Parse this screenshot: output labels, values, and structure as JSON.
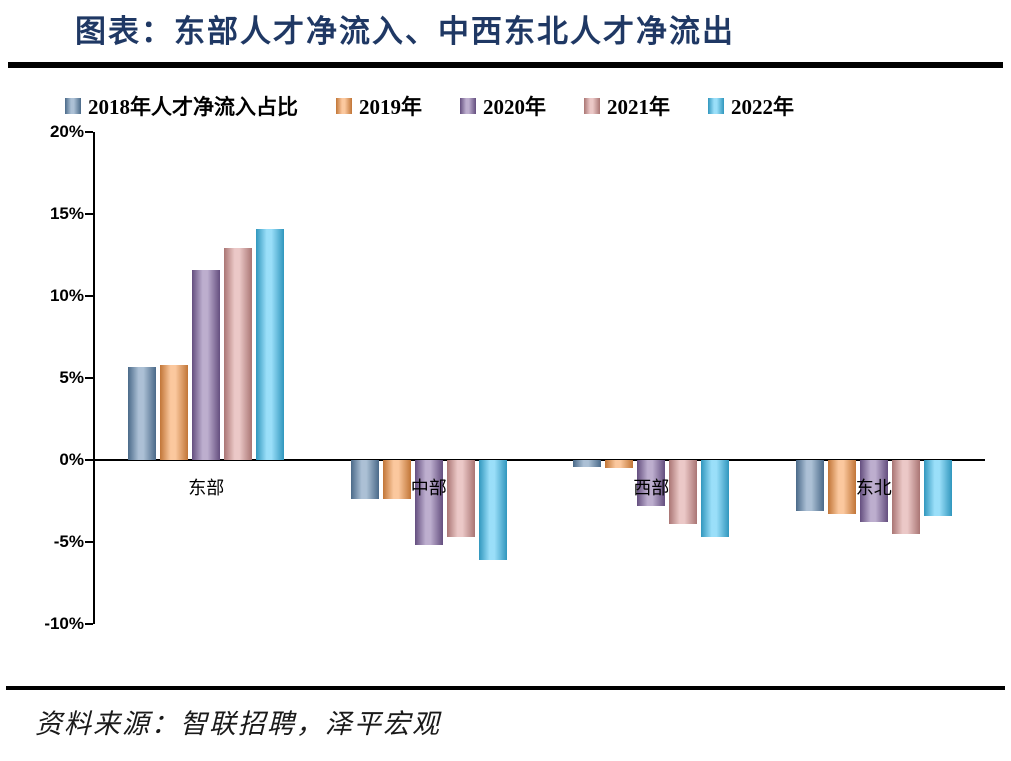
{
  "title": "图表：东部人才净流入、中西东北人才净流出",
  "source": "资料来源：智联招聘，泽平宏观",
  "chart_data": {
    "type": "bar",
    "title": "图表：东部人才净流入、中西东北人才净流出",
    "categories": [
      "东部",
      "中部",
      "西部",
      "东北"
    ],
    "series": [
      {
        "name": "2018年人才净流入占比",
        "color": "#5F87AF",
        "values": [
          5.7,
          -2.4,
          -0.4,
          -3.1
        ]
      },
      {
        "name": "2019年",
        "color": "#F79646",
        "values": [
          5.8,
          -2.4,
          -0.5,
          -3.3
        ]
      },
      {
        "name": "2020年",
        "color": "#8064A2",
        "values": [
          11.6,
          -5.2,
          -2.8,
          -3.8
        ]
      },
      {
        "name": "2021年",
        "color": "#D99694",
        "values": [
          12.9,
          -4.7,
          -3.9,
          -4.5
        ]
      },
      {
        "name": "2022年",
        "color": "#3EC1F3",
        "values": [
          14.1,
          -6.1,
          -4.7,
          -3.4
        ]
      }
    ],
    "xlabel": "",
    "ylabel": "",
    "ylim": [
      -10,
      20
    ],
    "ytick_step": 5,
    "ytick_labels": [
      "20%",
      "15%",
      "10%",
      "5%",
      "0%",
      "-5%",
      "-10%"
    ],
    "grid": false,
    "legend_position": "top"
  }
}
